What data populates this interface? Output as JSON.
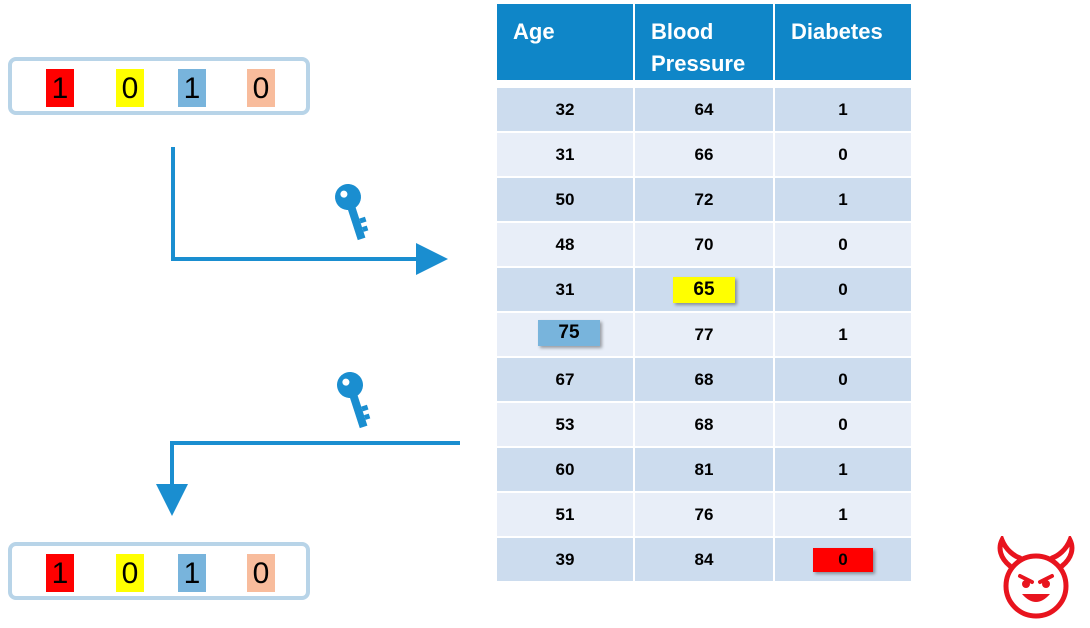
{
  "top_bits": {
    "values": [
      "1",
      "0",
      "1",
      "0"
    ],
    "colors": [
      "#ff0000",
      "#ffff00",
      "#78b4dc",
      "#f8bc9c"
    ]
  },
  "bottom_bits": {
    "values": [
      "1",
      "0",
      "1",
      "0"
    ],
    "colors": [
      "#ff0000",
      "#ffff00",
      "#78b4dc",
      "#f8bc9c"
    ]
  },
  "table": {
    "headers": [
      "Age",
      "Blood\nPressure",
      "Diabetes"
    ],
    "rows": [
      [
        "32",
        "64",
        "1"
      ],
      [
        "31",
        "66",
        "0"
      ],
      [
        "50",
        "72",
        "1"
      ],
      [
        "48",
        "70",
        "0"
      ],
      [
        "31",
        "65",
        "0"
      ],
      [
        "75",
        "77",
        "1"
      ],
      [
        "67",
        "68",
        "0"
      ],
      [
        "53",
        "68",
        "0"
      ],
      [
        "60",
        "81",
        "1"
      ],
      [
        "51",
        "76",
        "1"
      ],
      [
        "39",
        "84",
        "0"
      ]
    ]
  },
  "highlights": {
    "yellow": {
      "row": 4,
      "col": 1,
      "color": "#ffff00"
    },
    "blue": {
      "row": 5,
      "col": 0,
      "color": "#78b4dc"
    },
    "red": {
      "row": 10,
      "col": 2,
      "color": "#ff0000"
    }
  },
  "colors": {
    "header": "#0f86c8",
    "row_dark": "#ccdcee",
    "row_light": "#e8eef8",
    "arrow": "#1a8ed0",
    "devil": "#e8141e"
  },
  "icons": [
    "key-icon",
    "key-icon",
    "devil-face-icon"
  ]
}
